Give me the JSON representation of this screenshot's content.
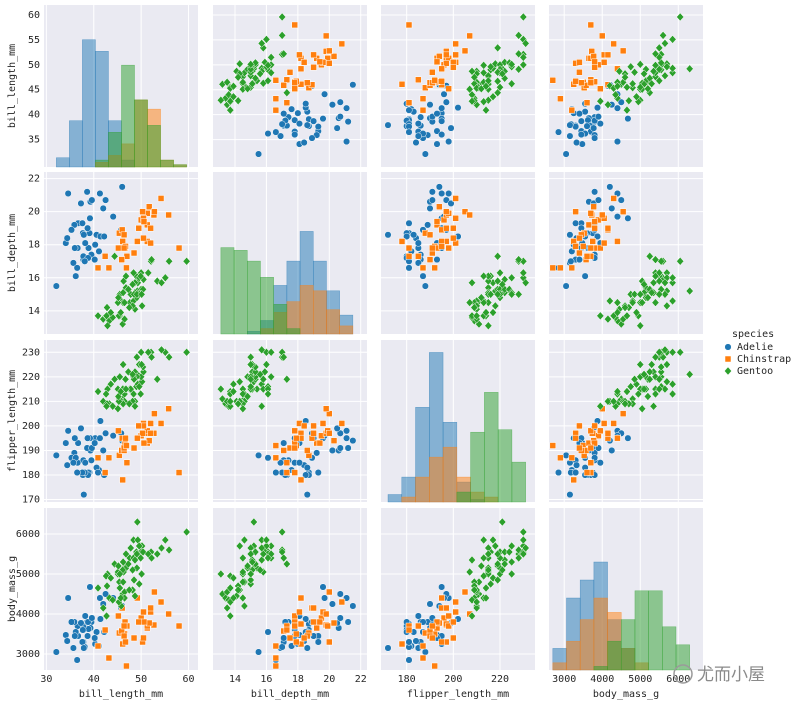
{
  "chart_data": {
    "type": "pairplot",
    "legend": {
      "title": "species",
      "position": "right"
    },
    "watermark": "尤而小屋",
    "variables": [
      {
        "label": "bill_length_mm",
        "lim": [
          29.5,
          62
        ],
        "ticks": [
          30,
          40,
          50,
          60
        ],
        "yticks": [
          35,
          40,
          45,
          50,
          55,
          60
        ],
        "hist": {
          "bins": [
            32.1,
            34.85,
            37.6,
            40.35,
            43.1,
            45.85,
            48.6,
            51.35,
            54.1,
            56.85,
            59.6
          ],
          "ylim": [
            0,
            70
          ],
          "counts": [
            [
              4,
              20,
              55,
              50,
              20,
              3,
              0,
              0,
              0,
              0
            ],
            [
              0,
              0,
              0,
              2,
              5,
              10,
              29,
              25,
              3,
              1
            ],
            [
              0,
              0,
              0,
              3,
              15,
              44,
              29,
              18,
              3,
              1
            ]
          ]
        }
      },
      {
        "label": "bill_depth_mm",
        "lim": [
          12.6,
          22.4
        ],
        "ticks": [
          14,
          16,
          18,
          20,
          22
        ],
        "yticks": [
          14,
          16,
          18,
          20,
          22
        ],
        "hist": {
          "bins": [
            13.1,
            13.94,
            14.78,
            15.62,
            16.46,
            17.3,
            18.14,
            18.98,
            19.82,
            20.66,
            21.5
          ],
          "ylim": [
            0,
            60
          ],
          "counts": [
            [
              0,
              0,
              1,
              5,
              18,
              27,
              38,
              27,
              16,
              7
            ],
            [
              0,
              0,
              0,
              2,
              8,
              12,
              18,
              16,
              9,
              3
            ],
            [
              32,
              31,
              27,
              21,
              11,
              2,
              0,
              0,
              0,
              0
            ]
          ]
        }
      },
      {
        "label": "flipper_length_mm",
        "lim": [
          169,
          235
        ],
        "ticks": [
          180,
          200,
          220
        ],
        "yticks": [
          170,
          180,
          190,
          200,
          210,
          220,
          230
        ],
        "hist": {
          "bins": [
            172,
            177.9,
            183.8,
            189.7,
            195.6,
            201.5,
            207.4,
            213.3,
            219.2,
            225.1,
            231
          ],
          "ylim": [
            0,
            65
          ],
          "counts": [
            [
              3,
              10,
              38,
              60,
              32,
              8,
              1,
              0,
              0,
              0
            ],
            [
              0,
              2,
              10,
              18,
              22,
              10,
              4,
              2,
              0,
              0
            ],
            [
              0,
              0,
              0,
              0,
              0,
              4,
              28,
              44,
              29,
              16
            ]
          ]
        }
      },
      {
        "label": "body_mass_g",
        "lim": [
          2600,
          6650
        ],
        "ticks": [
          3000,
          4000,
          5000,
          6000
        ],
        "yticks": [
          3000,
          4000,
          5000,
          6000
        ],
        "hist": {
          "bins": [
            2700,
            3060,
            3420,
            3780,
            4140,
            4500,
            4860,
            5220,
            5580,
            5940,
            6300
          ],
          "ylim": [
            0,
            45
          ],
          "counts": [
            [
              6,
              20,
              25,
              30,
              14,
              6,
              0,
              0,
              0,
              0
            ],
            [
              2,
              8,
              14,
              20,
              16,
              6,
              2,
              0,
              0,
              0
            ],
            [
              0,
              0,
              0,
              1,
              8,
              14,
              22,
              22,
              12,
              7
            ]
          ]
        }
      }
    ],
    "series": [
      {
        "name": "Adelie",
        "color": "#1f77b4",
        "marker": "circle",
        "rows": [
          [
            39.1,
            18.7,
            181,
            3750
          ],
          [
            39.5,
            17.4,
            186,
            3800
          ],
          [
            40.3,
            18,
            195,
            3250
          ],
          [
            36.7,
            19.3,
            193,
            3450
          ],
          [
            39.3,
            20.6,
            190,
            3650
          ],
          [
            38.9,
            17.8,
            181,
            3625
          ],
          [
            39.2,
            19.6,
            195,
            4675
          ],
          [
            34.1,
            18.1,
            193,
            3475
          ],
          [
            42,
            20.2,
            190,
            4250
          ],
          [
            37.8,
            17.1,
            186,
            3300
          ],
          [
            37.8,
            17.3,
            180,
            3700
          ],
          [
            41.1,
            17.6,
            182,
            3200
          ],
          [
            38.6,
            21.2,
            191,
            3800
          ],
          [
            34.6,
            21.1,
            198,
            4400
          ],
          [
            36.6,
            17.8,
            185,
            3700
          ],
          [
            38.7,
            19,
            195,
            3450
          ],
          [
            42.5,
            20.7,
            197,
            4500
          ],
          [
            34.4,
            18.4,
            184,
            3325
          ],
          [
            46,
            21.5,
            194,
            4200
          ],
          [
            37.7,
            18.7,
            180,
            3600
          ],
          [
            35.9,
            19.2,
            189,
            3800
          ],
          [
            38.2,
            18.1,
            185,
            3950
          ],
          [
            38.8,
            17.2,
            180,
            3800
          ],
          [
            35.3,
            18.9,
            187,
            3800
          ],
          [
            40.6,
            18.6,
            183,
            3550
          ],
          [
            32.1,
            15.5,
            188,
            3050
          ],
          [
            44.1,
            19.7,
            196,
            4400
          ],
          [
            41.4,
            18.5,
            202,
            3875
          ],
          [
            36.2,
            16.1,
            187,
            3550
          ],
          [
            40.9,
            16.6,
            181,
            3200
          ],
          [
            45.8,
            18.9,
            197,
            4150
          ],
          [
            37.3,
            20.5,
            199,
            3775
          ],
          [
            35.7,
            16.9,
            185,
            3150
          ],
          [
            41.3,
            21.1,
            195,
            4400
          ],
          [
            36,
            17.8,
            195,
            3450
          ],
          [
            39.6,
            20.7,
            191,
            3900
          ],
          [
            38.1,
            17,
            181,
            3175
          ],
          [
            42.2,
            18.5,
            180,
            3550
          ],
          [
            37.6,
            19.3,
            181,
            3300
          ],
          [
            40.2,
            17.1,
            193,
            3400
          ],
          [
            37.9,
            18.6,
            172,
            3150
          ],
          [
            36.5,
            16.6,
            181,
            2850
          ]
        ]
      },
      {
        "name": "Chinstrap",
        "color": "#ff7f0e",
        "marker": "square",
        "rows": [
          [
            46.5,
            17.9,
            192,
            3500
          ],
          [
            50,
            19.5,
            196,
            3900
          ],
          [
            51.3,
            19.2,
            193,
            3650
          ],
          [
            45.4,
            18.7,
            188,
            3525
          ],
          [
            52.7,
            19.8,
            197,
            3725
          ],
          [
            45.2,
            17.8,
            198,
            3950
          ],
          [
            46.1,
            18.2,
            178,
            3250
          ],
          [
            51.3,
            18.2,
            197,
            3750
          ],
          [
            46,
            18.9,
            195,
            4150
          ],
          [
            51.3,
            19.9,
            198,
            3700
          ],
          [
            46.6,
            17.8,
            193,
            3800
          ],
          [
            51.7,
            20.3,
            194,
            3775
          ],
          [
            47,
            17.3,
            185,
            3700
          ],
          [
            52,
            18.1,
            201,
            4050
          ],
          [
            45.9,
            17.1,
            190,
            3575
          ],
          [
            50.5,
            19.6,
            201,
            4050
          ],
          [
            50.3,
            20,
            197,
            3300
          ],
          [
            58,
            17.8,
            181,
            3700
          ],
          [
            46.4,
            18.6,
            190,
            3450
          ],
          [
            49.2,
            18.2,
            195,
            4400
          ],
          [
            42.4,
            17.3,
            181,
            3600
          ],
          [
            48.5,
            17.5,
            191,
            3400
          ],
          [
            43.2,
            16.6,
            187,
            2900
          ],
          [
            50.6,
            19.4,
            193,
            3800
          ],
          [
            46.7,
            17.9,
            195,
            3300
          ],
          [
            52,
            19,
            197,
            4150
          ],
          [
            50.5,
            18.4,
            200,
            3400
          ],
          [
            49.5,
            19,
            200,
            3800
          ],
          [
            46.4,
            17.8,
            191,
            3700
          ],
          [
            52.8,
            20,
            205,
            4550
          ],
          [
            55.8,
            19.8,
            207,
            4000
          ],
          [
            40.9,
            16.6,
            187,
            3200
          ],
          [
            54.2,
            20.8,
            201,
            4300
          ],
          [
            46.9,
            16.6,
            192,
            2700
          ]
        ]
      },
      {
        "name": "Gentoo",
        "color": "#2ca02c",
        "marker": "diamond",
        "rows": [
          [
            46.1,
            13.2,
            211,
            4500
          ],
          [
            50,
            16.3,
            230,
            5700
          ],
          [
            48.7,
            14.1,
            210,
            4450
          ],
          [
            50,
            15.2,
            218,
            5700
          ],
          [
            47.6,
            14.5,
            215,
            5400
          ],
          [
            46.5,
            13.5,
            210,
            4550
          ],
          [
            45.4,
            14.6,
            211,
            4800
          ],
          [
            46.7,
            15.3,
            219,
            5200
          ],
          [
            43.3,
            13.4,
            209,
            4400
          ],
          [
            46.8,
            15.4,
            215,
            5150
          ],
          [
            40.9,
            13.7,
            214,
            4650
          ],
          [
            49,
            16.1,
            216,
            5550
          ],
          [
            45.5,
            13.7,
            214,
            4650
          ],
          [
            48.4,
            14.6,
            213,
            5850
          ],
          [
            45.8,
            14.6,
            210,
            4200
          ],
          [
            49.3,
            15.7,
            217,
            5850
          ],
          [
            42,
            13.5,
            210,
            4150
          ],
          [
            49.2,
            15.2,
            221,
            6300
          ],
          [
            46.2,
            14.5,
            209,
            4800
          ],
          [
            48.7,
            15.1,
            222,
            5350
          ],
          [
            50.2,
            14.3,
            218,
            5700
          ],
          [
            45.1,
            14.5,
            215,
            5000
          ],
          [
            46.5,
            14.5,
            213,
            4400
          ],
          [
            46.3,
            15.8,
            215,
            5050
          ],
          [
            42.9,
            13.1,
            215,
            5000
          ],
          [
            46.1,
            15.1,
            215,
            5100
          ],
          [
            47.8,
            15,
            215,
            5650
          ],
          [
            48.2,
            14.3,
            210,
            4600
          ],
          [
            50,
            15.3,
            220,
            5550
          ],
          [
            47.3,
            15.3,
            222,
            5250
          ],
          [
            42.8,
            14.2,
            209,
            4700
          ],
          [
            45.1,
            14.5,
            207,
            5050
          ],
          [
            59.6,
            17,
            230,
            6050
          ],
          [
            49.1,
            14.8,
            220,
            5150
          ],
          [
            48.4,
            16.3,
            220,
            5400
          ],
          [
            42.6,
            13.7,
            213,
            4950
          ],
          [
            44.4,
            17.3,
            219,
            5250
          ],
          [
            44,
            13.6,
            208,
            4350
          ],
          [
            48.7,
            15.7,
            208,
            5350
          ],
          [
            42.7,
            13.7,
            208,
            3950
          ],
          [
            49.6,
            16,
            225,
            5700
          ],
          [
            45.3,
            13.7,
            210,
            4300
          ],
          [
            49.6,
            15,
            216,
            4750
          ],
          [
            50.5,
            15.9,
            222,
            5550
          ],
          [
            43.6,
            13.9,
            217,
            4900
          ],
          [
            45.5,
            15,
            220,
            5000
          ],
          [
            50.4,
            15.3,
            224,
            5550
          ],
          [
            46.2,
            15.1,
            225,
            5300
          ],
          [
            45.2,
            14.8,
            212,
            5200
          ],
          [
            48.5,
            15,
            219,
            4850
          ],
          [
            49.1,
            15,
            228,
            5500
          ],
          [
            47.5,
            14.2,
            209,
            4600
          ],
          [
            46.8,
            16.1,
            215,
            5500
          ],
          [
            55.9,
            17,
            228,
            5600
          ],
          [
            50.1,
            15,
            225,
            5000
          ],
          [
            55.1,
            16,
            230,
            5850
          ],
          [
            52.1,
            17,
            230,
            5550
          ],
          [
            51.5,
            16.3,
            230,
            5500
          ],
          [
            48.2,
            15.6,
            221,
            5100
          ],
          [
            53.4,
            15.8,
            219,
            5500
          ],
          [
            45.7,
            13.9,
            214,
            4400
          ],
          [
            54.3,
            15.7,
            231,
            5650
          ],
          [
            52.2,
            17.1,
            228,
            5400
          ],
          [
            49.9,
            16.1,
            213,
            5400
          ]
        ]
      }
    ]
  }
}
